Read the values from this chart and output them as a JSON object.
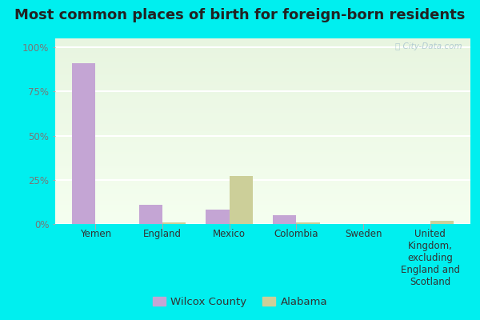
{
  "title": "Most common places of birth for foreign-born residents",
  "categories": [
    "Yemen",
    "England",
    "Mexico",
    "Colombia",
    "Sweden",
    "United\nKingdom,\nexcluding\nEngland and\nScotland"
  ],
  "wilcox_values": [
    91,
    11,
    8,
    5,
    0,
    0
  ],
  "alabama_values": [
    0,
    1,
    27,
    1,
    0,
    2
  ],
  "wilcox_color": "#c4a5d4",
  "alabama_color": "#cccf99",
  "background_color": "#00efef",
  "plot_bg_top": "#e8f5e0",
  "plot_bg_bottom": "#f8fff8",
  "grid_color": "#ffffff",
  "title_fontsize": 13,
  "tick_fontsize": 8.5,
  "legend_labels": [
    "Wilcox County",
    "Alabama"
  ],
  "yticks": [
    0,
    25,
    50,
    75,
    100
  ],
  "ytick_labels": [
    "0%",
    "25%",
    "50%",
    "75%",
    "100%"
  ],
  "ylim": [
    0,
    105
  ],
  "bar_width": 0.35,
  "watermark": "ⓘ City-Data.com"
}
